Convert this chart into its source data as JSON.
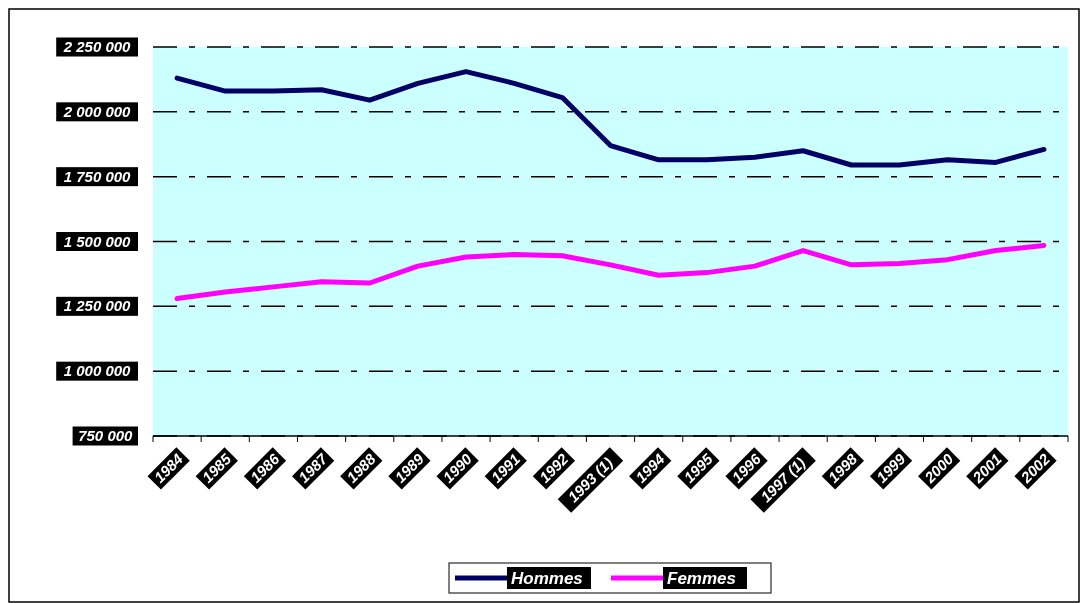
{
  "chart_data": {
    "type": "line",
    "categories": [
      "1984",
      "1985",
      "1986",
      "1987",
      "1988",
      "1989",
      "1990",
      "1991",
      "1992",
      "1993 (1)",
      "1994",
      "1995",
      "1996",
      "1997 (1)",
      "1998",
      "1999",
      "2000",
      "2001",
      "2002"
    ],
    "series": [
      {
        "name": "Hommes",
        "color": "#000066",
        "values": [
          2130000,
          2080000,
          2080000,
          2085000,
          2045000,
          2110000,
          2155000,
          2110000,
          2055000,
          1870000,
          1815000,
          1815000,
          1825000,
          1850000,
          1795000,
          1795000,
          1815000,
          1805000,
          1855000
        ]
      },
      {
        "name": "Femmes",
        "color": "#ff00ff",
        "values": [
          1280000,
          1305000,
          1325000,
          1345000,
          1340000,
          1405000,
          1440000,
          1450000,
          1445000,
          1410000,
          1370000,
          1380000,
          1405000,
          1465000,
          1410000,
          1415000,
          1430000,
          1465000,
          1485000
        ]
      }
    ],
    "ylim": [
      750000,
      2250000
    ],
    "yticks": [
      {
        "value": 750000,
        "label": "750 000"
      },
      {
        "value": 1000000,
        "label": "1 000 000"
      },
      {
        "value": 1250000,
        "label": "1 250 000"
      },
      {
        "value": 1500000,
        "label": "1 500 000"
      },
      {
        "value": 1750000,
        "label": "1 750 000"
      },
      {
        "value": 2000000,
        "label": "2 000 000"
      },
      {
        "value": 2250000,
        "label": "2 250 000"
      }
    ],
    "grid": "y",
    "legend": "bottom",
    "line_style": "solid",
    "marker": "none"
  }
}
